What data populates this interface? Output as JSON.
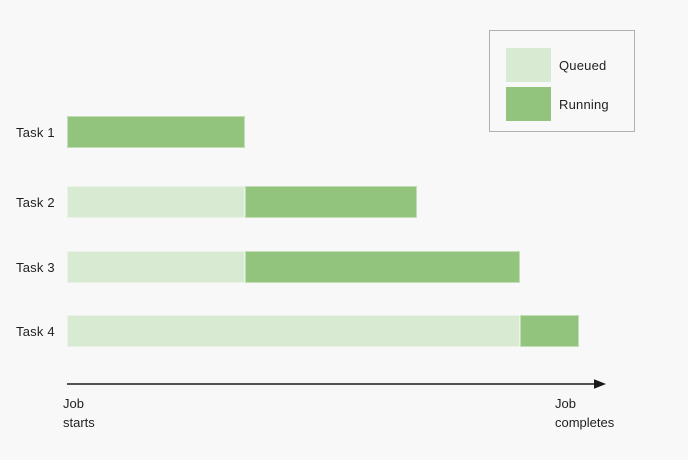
{
  "chart_data": {
    "type": "bar",
    "subtype": "gantt-horizontal-stacked",
    "title": "",
    "x_range": [
      0,
      100
    ],
    "grid": false,
    "legend_position": "top-right",
    "legend": {
      "items": [
        {
          "label": "Queued",
          "color_key": "queued"
        },
        {
          "label": "Running",
          "color_key": "running"
        }
      ]
    },
    "colors": {
      "queued": "#d9ead3",
      "running": "#93c47d",
      "axis": "#1a1a1a",
      "text": "#1f1f1f",
      "background": "#f8f8f8",
      "legend_border": "#b0b0b0"
    },
    "tasks": [
      {
        "label": "Task 1",
        "segments": [
          {
            "state": "Running",
            "start": 0,
            "end": 33
          }
        ]
      },
      {
        "label": "Task 2",
        "segments": [
          {
            "state": "Queued",
            "start": 0,
            "end": 33
          },
          {
            "state": "Running",
            "start": 33,
            "end": 65
          }
        ]
      },
      {
        "label": "Task 3",
        "segments": [
          {
            "state": "Queued",
            "start": 0,
            "end": 33
          },
          {
            "state": "Running",
            "start": 33,
            "end": 84
          }
        ]
      },
      {
        "label": "Task 4",
        "segments": [
          {
            "state": "Queued",
            "start": 0,
            "end": 84
          },
          {
            "state": "Running",
            "start": 84,
            "end": 95
          }
        ]
      }
    ],
    "x_axis": {
      "start_label": "Job\nstarts",
      "end_label": "Job\ncompletes"
    }
  }
}
